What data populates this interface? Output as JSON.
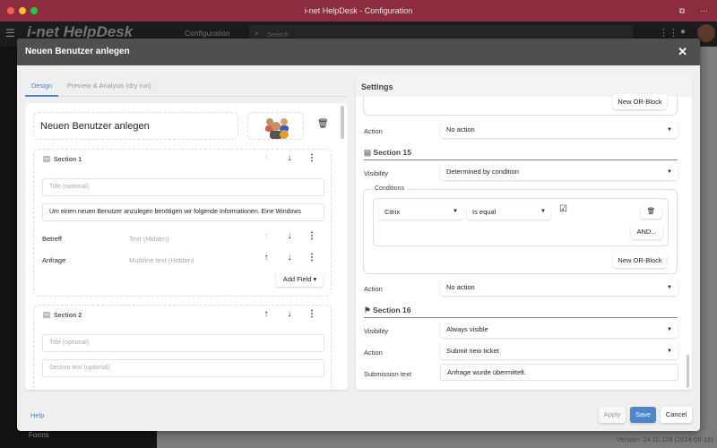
{
  "window": {
    "title": "i-net HelpDesk - Configuration"
  },
  "app": {
    "logo": "i-net HelpDesk",
    "section": "Configuration",
    "search_placeholder": "Search",
    "sidebar_item": "Forms",
    "version": "Version: 24.10.128 (2024-08-15)"
  },
  "dialog": {
    "title": "Neuen Benutzer anlegen",
    "close": "✕",
    "tabs": [
      {
        "label": "Design",
        "active": true
      },
      {
        "label": "Preview & Analysis (dry run)",
        "active": false
      }
    ],
    "design": {
      "form_title": "Neuen Benutzer anlegen",
      "sections": [
        {
          "name": "Section 1",
          "title_placeholder": "Title (optional)",
          "text": "Um einen neuen Benutzer anzulegen benötigen wir folgende Informationen. Eine Windows",
          "fields": [
            {
              "label": "Betreff",
              "type": "Text (Hidden)"
            },
            {
              "label": "Anfrage",
              "type": "Multiline text (Hidden)"
            }
          ],
          "add_field": "Add Field"
        },
        {
          "name": "Section 2",
          "title_placeholder": "Title (optional)",
          "text_placeholder": "Section text (optional)"
        }
      ]
    },
    "settings": {
      "title": "Settings",
      "new_or_block": "New OR-Block",
      "action_label": "Action",
      "action_value_1": "No action",
      "section15": {
        "name": "Section 15",
        "visibility_label": "Visibility",
        "visibility": "Determined by condition",
        "conditions_label": "Conditions",
        "field": "Citrix",
        "operator": "Is equal",
        "checked": true,
        "and": "AND...",
        "new_or_block": "New OR-Block",
        "action_label": "Action",
        "action": "No action"
      },
      "section16": {
        "name": "Section 16",
        "visibility_label": "Visibility",
        "visibility": "Always visible",
        "action_label": "Action",
        "action": "Submit new ticket",
        "submission_label": "Submission text",
        "submission_text": "Anfrage wurde übermittelt."
      }
    },
    "footer": {
      "help": "Help",
      "apply": "Apply",
      "save": "Save",
      "cancel": "Cancel"
    }
  },
  "colors": {
    "titlebar": "#8b2d3f",
    "accent": "#4a86c8"
  }
}
